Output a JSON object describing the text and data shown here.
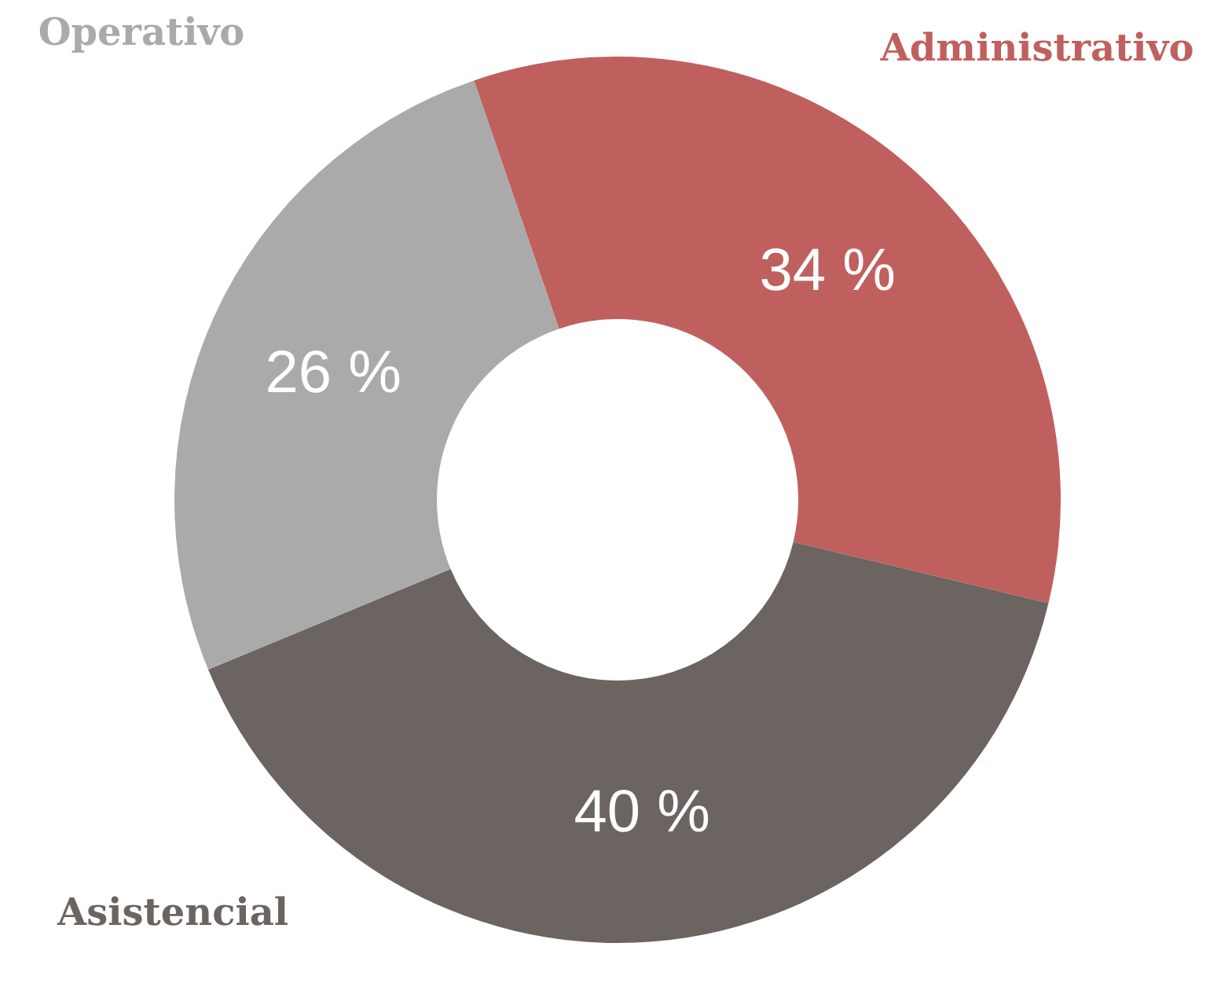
{
  "chart_data": {
    "type": "donut",
    "categories": [
      "Administrativo",
      "Asistencial",
      "Operativo"
    ],
    "values": [
      34,
      40,
      26
    ],
    "colors": [
      "#c0605e",
      "#6b6461",
      "#aaaaaa"
    ],
    "value_labels": [
      "34 %",
      "40 %",
      "26 %"
    ],
    "legend": false
  }
}
